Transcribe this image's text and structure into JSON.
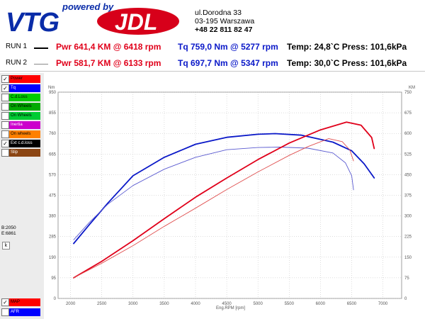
{
  "header": {
    "logo_tagline": "powered by",
    "logo_left": "VTG",
    "logo_right": "JDL",
    "address_line1": "ul.Dorodna 33",
    "address_line2": "03-195 Warszawa",
    "phone": "+48 22 811 82 47"
  },
  "runs": [
    {
      "label": "RUN 1",
      "power": "Pwr  641,4 KM @ 6418 rpm",
      "torque": "Tq 759,0 Nm @ 5277 rpm",
      "conditions": "Temp: 24,8`C Press: 101,6kPa"
    },
    {
      "label": "RUN 2",
      "power": "Pwr  581,7 KM @ 6133 rpm",
      "torque": "Tq 697,7 Nm @ 5347 rpm",
      "conditions": "Temp: 30,0`C Press: 101,6kPa"
    }
  ],
  "sidebar": {
    "items": [
      {
        "label": "Power",
        "color": "#ff0000",
        "checked": true
      },
      {
        "label": "Tq",
        "color": "#0000ff",
        "checked": true
      },
      {
        "label": "C.d.Loss",
        "color": "#00cc00",
        "checked": false
      },
      {
        "label": "On Wheels",
        "color": "#00aa00",
        "checked": false
      },
      {
        "label": "On Wheels",
        "color": "#00cc33",
        "checked": false
      },
      {
        "label": "Inertia",
        "color": "#cc00cc",
        "checked": false
      },
      {
        "label": "On wheels",
        "color": "#ff8000",
        "checked": false
      },
      {
        "label": "Ext c.d.loss",
        "color": "#000000",
        "checked": true
      },
      {
        "label": "Slip",
        "color": "#8b4513",
        "checked": false
      }
    ],
    "b_value": "B:2050",
    "e_value": "E:6861",
    "k_button": "k",
    "bottom_items": [
      {
        "label": "MAP",
        "color": "#ff0000",
        "checked": true
      },
      {
        "label": "AFR",
        "color": "#0000ff",
        "checked": false
      }
    ]
  },
  "chart_data": {
    "type": "line",
    "xlabel": "Eng.RPM [rpm]",
    "ylabel_left": "Nm",
    "ylabel_right": "KM",
    "xlim": [
      1800,
      7300
    ],
    "ylim_left": [
      0,
      950
    ],
    "ylim_right": [
      0,
      750
    ],
    "x_ticks": [
      2000,
      2500,
      3000,
      3500,
      4000,
      4500,
      5000,
      5500,
      6000,
      6500,
      7000
    ],
    "y_left_ticks": [
      0,
      95,
      190,
      285,
      380,
      475,
      570,
      665,
      760,
      855,
      950
    ],
    "y_right_ticks": [
      0,
      75,
      150,
      225,
      300,
      375,
      450,
      525,
      600,
      675,
      750
    ],
    "grid": true,
    "series": [
      {
        "name": "Tq RUN 1",
        "axis": "left",
        "color": "#0a18c8",
        "width": 1.8,
        "x": [
          2050,
          2300,
          2600,
          3000,
          3500,
          4000,
          4500,
          5000,
          5277,
          5700,
          6200,
          6500,
          6700,
          6861
        ],
        "y": [
          253,
          340,
          440,
          565,
          650,
          710,
          742,
          756,
          759,
          752,
          720,
          680,
          620,
          555
        ]
      },
      {
        "name": "Tq RUN 2",
        "axis": "left",
        "color": "#5a5ad0",
        "width": 0.9,
        "x": [
          2050,
          2300,
          2600,
          3000,
          3500,
          4000,
          4500,
          5000,
          5347,
          5800,
          6200,
          6400,
          6500,
          6530
        ],
        "y": [
          270,
          350,
          435,
          520,
          595,
          650,
          685,
          695,
          697,
          692,
          670,
          625,
          565,
          500
        ]
      },
      {
        "name": "Power RUN 1",
        "axis": "right",
        "color": "#e0001a",
        "width": 1.8,
        "x": [
          2050,
          2500,
          3000,
          3500,
          4000,
          4500,
          5000,
          5500,
          6000,
          6418,
          6650,
          6820,
          6861
        ],
        "y": [
          75,
          135,
          210,
          290,
          368,
          438,
          505,
          565,
          613,
          641,
          630,
          585,
          545
        ]
      },
      {
        "name": "Power RUN 2",
        "axis": "right",
        "color": "#e05050",
        "width": 0.9,
        "x": [
          2050,
          2500,
          3000,
          3500,
          4000,
          4500,
          5000,
          5500,
          5800,
          6133,
          6350,
          6470,
          6530
        ],
        "y": [
          75,
          128,
          192,
          262,
          328,
          396,
          460,
          520,
          552,
          581,
          570,
          540,
          500
        ]
      }
    ]
  }
}
